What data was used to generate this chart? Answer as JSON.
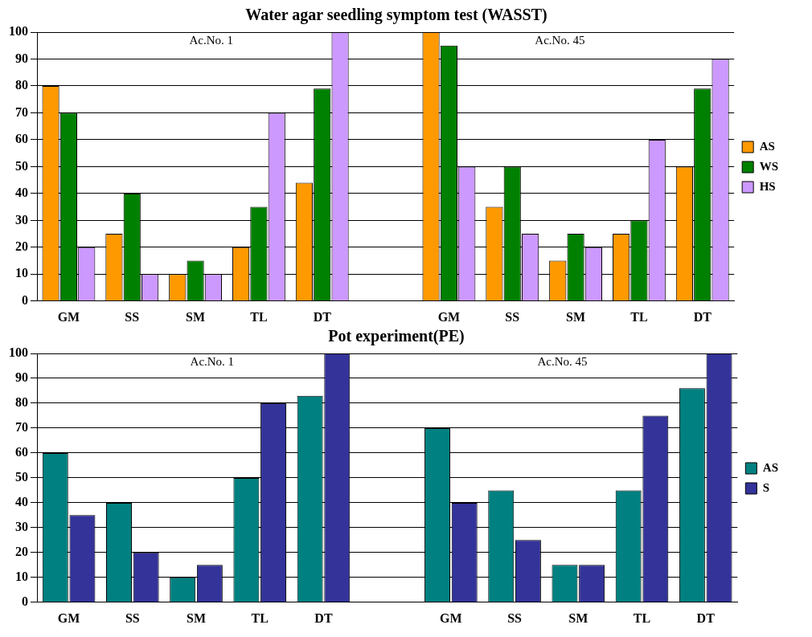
{
  "chart_data": [
    {
      "type": "bar",
      "title": "Water agar seedling symptom test (WASST)",
      "categories": [
        "GM",
        "SS",
        "SM",
        "TL",
        "DT",
        null,
        "GM",
        "SS",
        "SM",
        "TL",
        "DT"
      ],
      "series": [
        {
          "name": "AS",
          "color": "#ff9900",
          "values": [
            80,
            25,
            10,
            20,
            44,
            null,
            100,
            35,
            15,
            25,
            50
          ]
        },
        {
          "name": "WS",
          "color": "#008000",
          "values": [
            70,
            40,
            15,
            35,
            79,
            null,
            95,
            50,
            25,
            30,
            79
          ]
        },
        {
          "name": "HS",
          "color": "#cc99ff",
          "values": [
            20,
            10,
            10,
            70,
            100,
            null,
            50,
            25,
            20,
            60,
            90
          ]
        }
      ],
      "ylim": [
        0,
        100
      ],
      "yticks": [
        0,
        10,
        20,
        30,
        40,
        50,
        60,
        70,
        80,
        90,
        100
      ],
      "grid": "y",
      "legend": "right",
      "annotations": [
        "Ac.No. 1",
        "Ac.No. 45"
      ]
    },
    {
      "type": "bar",
      "title": "Pot experiment(PE)",
      "categories": [
        "GM",
        "SS",
        "SM",
        "TL",
        "DT",
        null,
        "GM",
        "SS",
        "SM",
        "TL",
        "DT"
      ],
      "series": [
        {
          "name": "AS",
          "color": "#008080",
          "values": [
            60,
            40,
            10,
            50,
            83,
            null,
            70,
            45,
            15,
            45,
            86
          ]
        },
        {
          "name": "S",
          "color": "#333399",
          "values": [
            35,
            20,
            15,
            80,
            100,
            null,
            40,
            25,
            15,
            75,
            100
          ]
        }
      ],
      "ylim": [
        0,
        100
      ],
      "yticks": [
        0,
        10,
        20,
        30,
        40,
        50,
        60,
        70,
        80,
        90,
        100
      ],
      "grid": "y",
      "legend": "right",
      "annotations": [
        "Ac.No. 1",
        "Ac.No. 45"
      ]
    }
  ]
}
